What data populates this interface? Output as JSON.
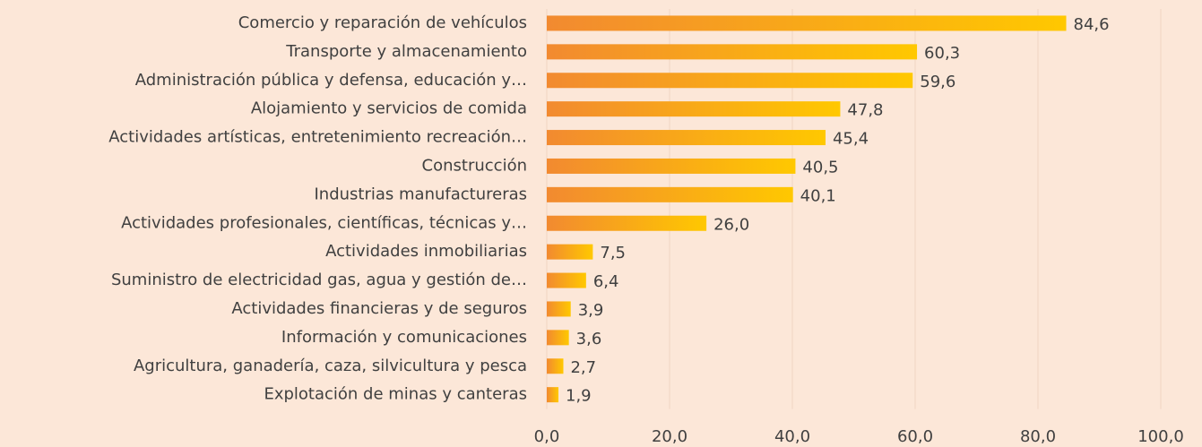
{
  "chart_data": {
    "type": "bar",
    "orientation": "horizontal",
    "categories": [
      "Comercio y reparación de vehículos",
      "Transporte y almacenamiento",
      "Administración pública y defensa, educación y…",
      "Alojamiento y servicios de comida",
      "Actividades artísticas, entretenimiento recreación…",
      "Construcción",
      "Industrias manufactureras",
      "Actividades profesionales, científicas, técnicas y…",
      "Actividades inmobiliarias",
      "Suministro de electricidad gas, agua y gestión de…",
      "Actividades financieras y de seguros",
      "Información y comunicaciones",
      "Agricultura, ganadería, caza, silvicultura y pesca",
      "Explotación de minas y canteras"
    ],
    "values": [
      84.6,
      60.3,
      59.6,
      47.8,
      45.4,
      40.5,
      40.1,
      26.0,
      7.5,
      6.4,
      3.9,
      3.6,
      2.7,
      1.9
    ],
    "value_labels": [
      "84,6",
      "60,3",
      "59,6",
      "47,8",
      "45,4",
      "40,5",
      "40,1",
      "26,0",
      "7,5",
      "6,4",
      "3,9",
      "3,6",
      "2,7",
      "1,9"
    ],
    "color": [
      "#f28a30",
      "#ffc800"
    ],
    "xlim": [
      0,
      100
    ],
    "xticks": [
      {
        "value": 0,
        "label": "0,0"
      },
      {
        "value": 20,
        "label": "20,0"
      },
      {
        "value": 40,
        "label": "40,0"
      },
      {
        "value": 60,
        "label": "60,0"
      },
      {
        "value": 80,
        "label": "80,0"
      },
      {
        "value": 100,
        "label": "100,0"
      }
    ],
    "grid": true
  }
}
